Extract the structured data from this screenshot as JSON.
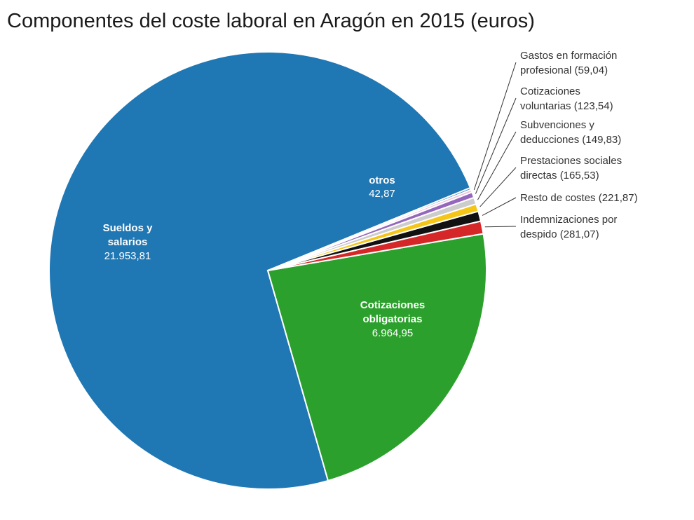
{
  "title": "Componentes del coste laboral en Aragón en 2015 (euros)",
  "chart_data": {
    "type": "pie",
    "title": "Componentes del coste laboral en Aragón en 2015 (euros)",
    "slices": [
      {
        "name_lines": [
          "Sueldos y",
          "salarios"
        ],
        "value": 21953.81,
        "value_text": "21.953,81",
        "color": "#1f77b4",
        "label": "inside"
      },
      {
        "name_lines": [
          "Cotizaciones",
          "obligatorias"
        ],
        "value": 6964.95,
        "value_text": "6.964,95",
        "color": "#2ca02c",
        "label": "inside"
      },
      {
        "name_lines": [
          "Indemnizaciones por",
          "despido (281,07)"
        ],
        "value": 281.07,
        "value_text": "281,07",
        "color": "#d62728",
        "label": "outside"
      },
      {
        "name_lines": [
          "Resto de costes (221,87)"
        ],
        "value": 221.87,
        "value_text": "221,87",
        "color": "#111111",
        "label": "outside"
      },
      {
        "name_lines": [
          "Prestaciones sociales",
          "directas (165,53)"
        ],
        "value": 165.53,
        "value_text": "165,53",
        "color": "#f5c518",
        "label": "outside"
      },
      {
        "name_lines": [
          "Subvenciones y",
          "deducciones (149,83)"
        ],
        "value": 149.83,
        "value_text": "149,83",
        "color": "#cccccc",
        "label": "outside"
      },
      {
        "name_lines": [
          "Cotizaciones",
          "voluntarias (123,54)"
        ],
        "value": 123.54,
        "value_text": "123,54",
        "color": "#9467bd",
        "label": "outside"
      },
      {
        "name_lines": [
          "Gastos en formación",
          "profesional (59,04)"
        ],
        "value": 59.04,
        "value_text": "59,04",
        "color": "#f0c0d8",
        "label": "outside"
      },
      {
        "name_lines": [
          "otros"
        ],
        "value": 42.87,
        "value_text": "42,87",
        "color": "#1f77b4",
        "label": "inside-small"
      }
    ]
  }
}
